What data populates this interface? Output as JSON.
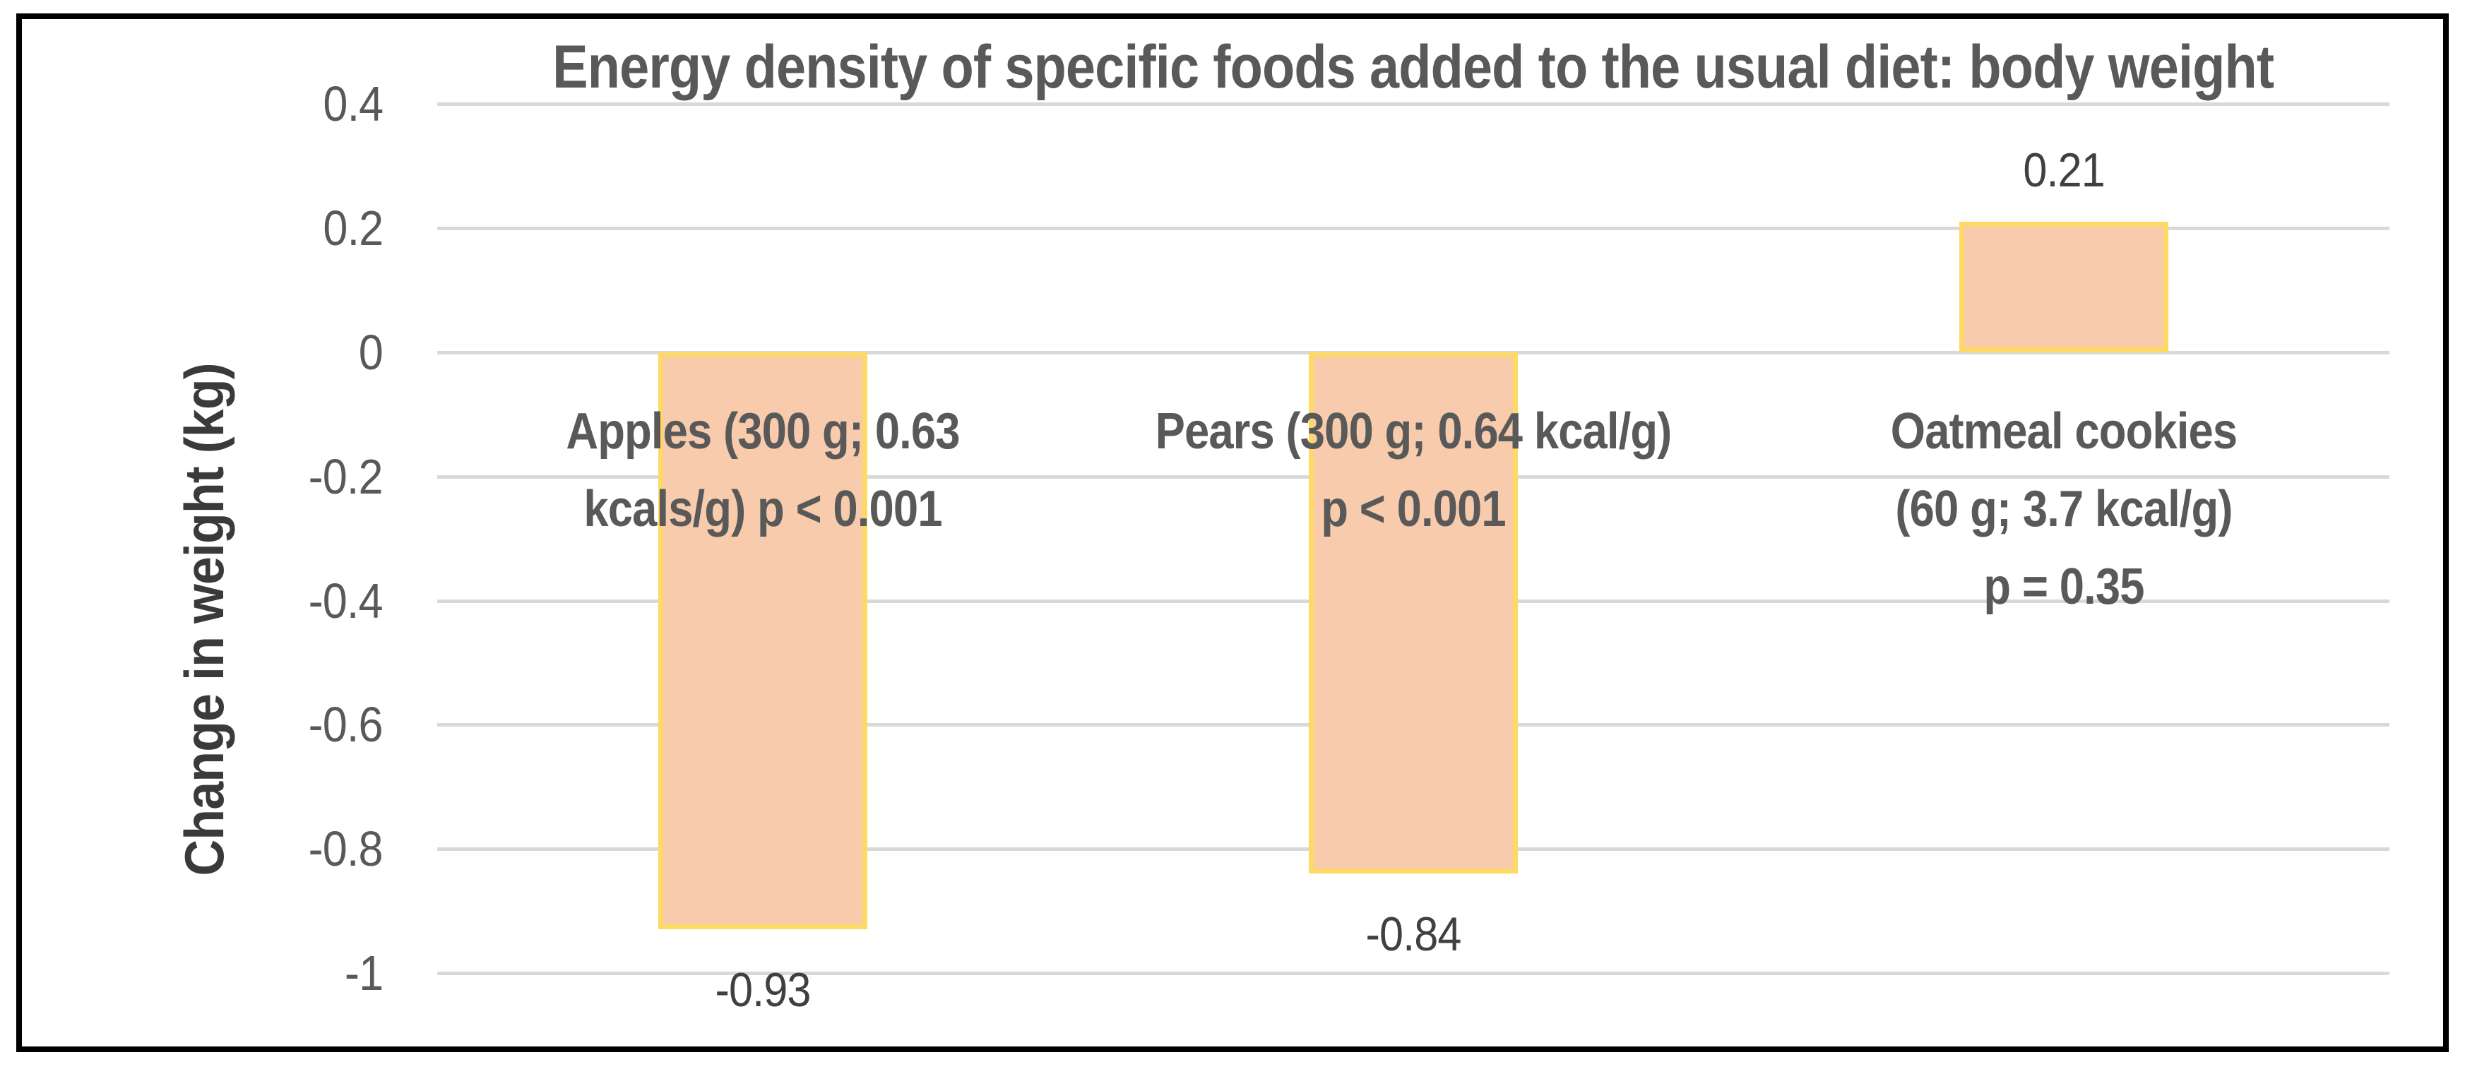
{
  "chart_data": {
    "type": "bar",
    "title": "Energy density of specific foods added to the usual diet: body weight",
    "ylabel": "Change in weight (kg)",
    "xlabel": "",
    "categories": [
      "Apples (300 g; 0.63 kcals/g) p < 0.001",
      "Pears (300 g; 0.64 kcal/g) p < 0.001",
      "Oatmeal cookies (60 g; 3.7 kcal/g) p = 0.35"
    ],
    "category_label_lines": [
      [
        "Apples (300 g; 0.63",
        "kcals/g) p < 0.001"
      ],
      [
        "Pears (300 g; 0.64 kcal/g)",
        "p < 0.001"
      ],
      [
        "Oatmeal cookies",
        "(60 g; 3.7 kcal/g)",
        "p = 0.35"
      ]
    ],
    "values": [
      -0.93,
      -0.84,
      0.21
    ],
    "data_labels": [
      "-0.93",
      "-0.84",
      "0.21"
    ],
    "ylim": [
      -1,
      0.4
    ],
    "ytick_step": 0.2,
    "yticks": [
      "0.4",
      "0.2",
      "0",
      "-0.2",
      "-0.4",
      "-0.6",
      "-0.8",
      "-1"
    ],
    "grid": true,
    "legend": false,
    "colors": {
      "bar_fill": "#F7CBAB",
      "bar_border": "#FFD965",
      "gridline": "#D9D9D9",
      "title_text": "#595959",
      "tick_text": "#595959",
      "category_text": "#595959",
      "data_label_text": "#404040",
      "axis_title_text": "#3A3A3A",
      "frame": "#000000",
      "background": "#FFFFFF"
    }
  }
}
